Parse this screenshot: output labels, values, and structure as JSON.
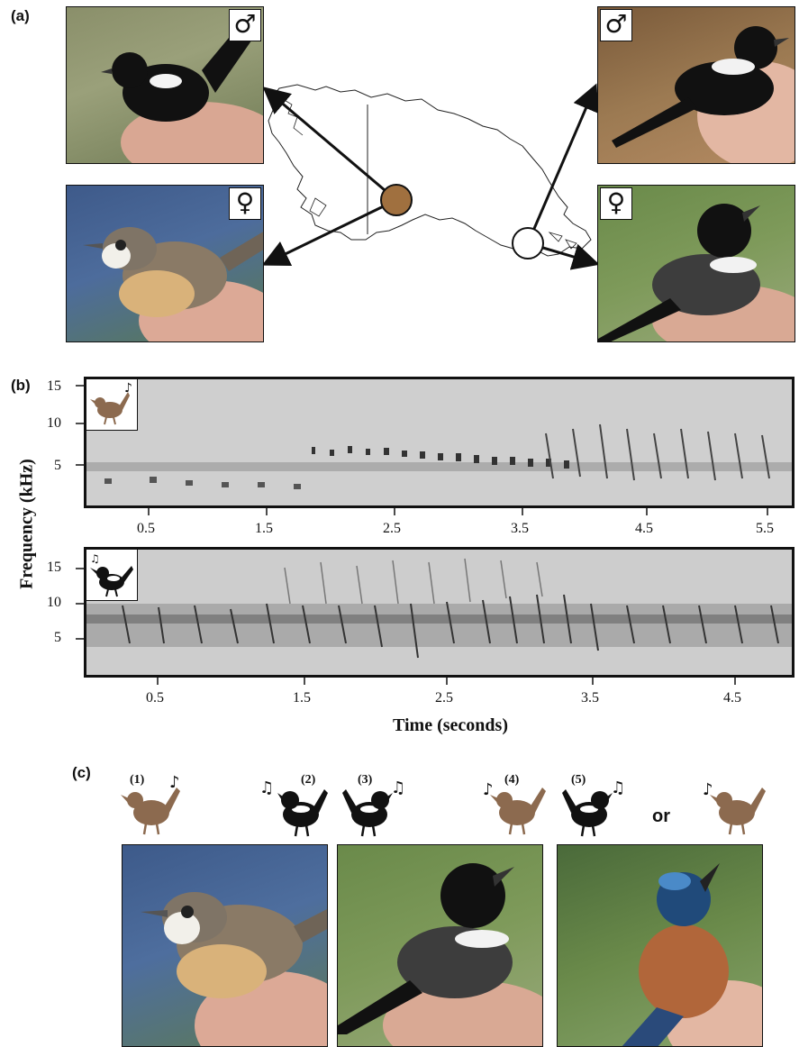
{
  "panels": {
    "a": "(a)",
    "b": "(b)",
    "c": "(c)"
  },
  "sex_symbols": {
    "male": "♂",
    "female": "♀"
  },
  "spectrogram_top": {
    "y_ticks": [
      "15",
      "10",
      "5"
    ],
    "x_ticks": [
      "0.5",
      "1.5",
      "2.5",
      "3.5",
      "4.5",
      "5.5"
    ]
  },
  "spectrogram_bottom": {
    "y_ticks": [
      "15",
      "10",
      "5"
    ],
    "x_ticks": [
      "0.5",
      "1.5",
      "2.5",
      "3.5",
      "4.5"
    ]
  },
  "axis_titles": {
    "y": "Frequency (kHz)",
    "x": "Time (seconds)"
  },
  "scenario_labels": [
    "(1)",
    "(2)",
    "(3)",
    "(4)",
    "(5)"
  ],
  "or_label": "or",
  "colors": {
    "brown_bird": "#8c6a4f",
    "black_bird": "#111111",
    "map_dot_filled": "#a0703f",
    "map_dot_open": "#ffffff"
  }
}
